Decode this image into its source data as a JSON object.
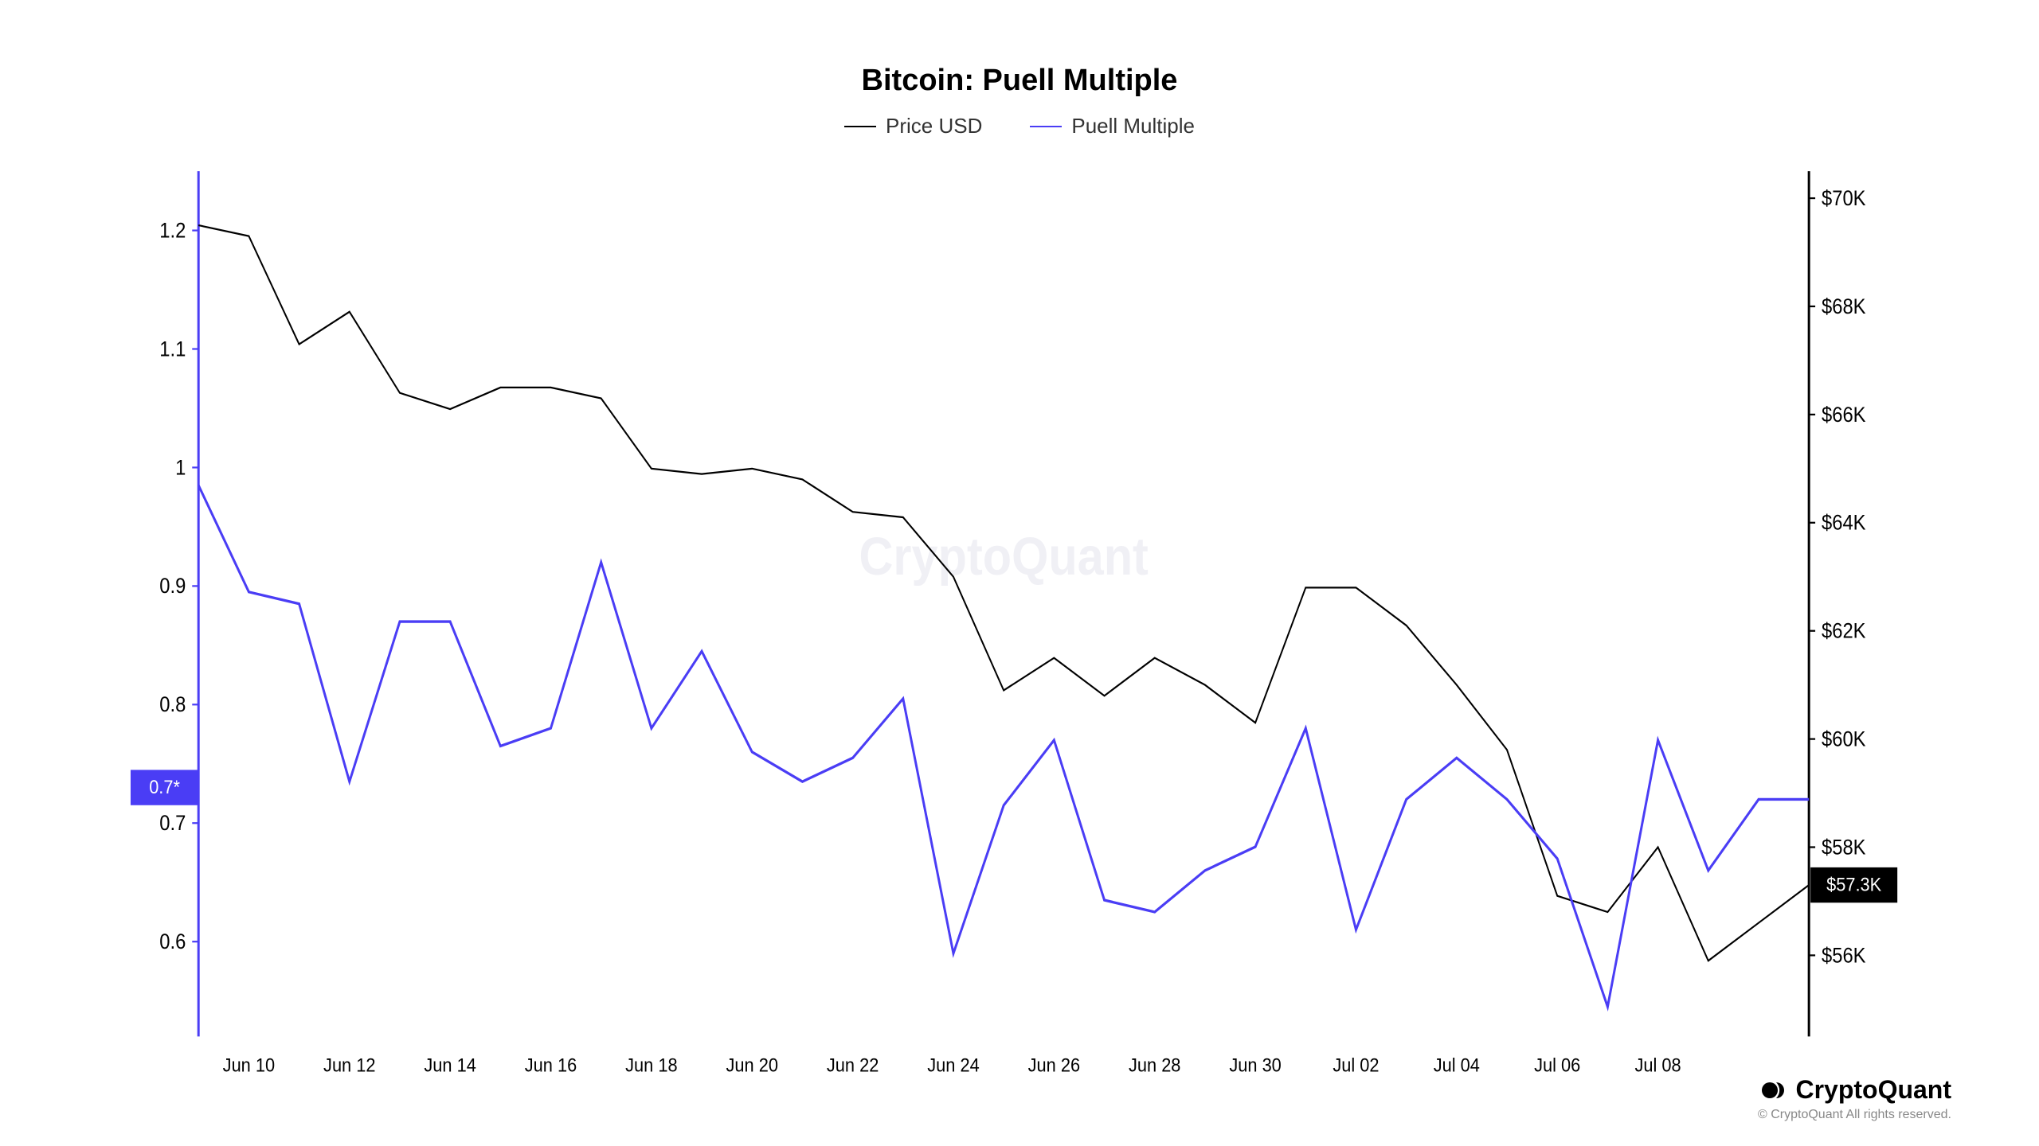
{
  "chart": {
    "type": "line-dual-axis",
    "title": "Bitcoin: Puell Multiple",
    "title_fontsize": 38,
    "background_color": "#ffffff",
    "watermark_text": "CryptoQuant",
    "watermark_color": "#f0f0f5",
    "legend": [
      {
        "label": "Price USD",
        "color": "#000000"
      },
      {
        "label": "Puell Multiple",
        "color": "#4a3df5"
      }
    ],
    "x_axis": {
      "labels": [
        "Jun 10",
        "Jun 12",
        "Jun 14",
        "Jun 16",
        "Jun 18",
        "Jun 20",
        "Jun 22",
        "Jun 24",
        "Jun 26",
        "Jun 28",
        "Jun 30",
        "Jul 02",
        "Jul 04",
        "Jul 06",
        "Jul 08"
      ],
      "label_fontsize": 22
    },
    "left_axis": {
      "color": "#4a3df5",
      "ticks": [
        0.6,
        0.7,
        0.8,
        0.9,
        1,
        1.1,
        1.2
      ],
      "min": 0.52,
      "max": 1.25,
      "marker_value": "0.7*",
      "marker_y": 0.73,
      "label_fontsize": 24
    },
    "right_axis": {
      "color": "#000000",
      "ticks": [
        56,
        58,
        60,
        62,
        64,
        66,
        68,
        70
      ],
      "tick_prefix": "$",
      "tick_suffix": "K",
      "min": 54.5,
      "max": 70.5,
      "marker_value": "$57.3K",
      "marker_y": 57.3,
      "label_fontsize": 24
    },
    "series_price": {
      "name": "Price USD",
      "color": "#000000",
      "line_width": 2,
      "axis": "right",
      "data": [
        69.5,
        69.3,
        67.3,
        67.9,
        66.4,
        66.1,
        66.5,
        66.5,
        66.3,
        65.0,
        64.9,
        65.0,
        64.8,
        64.2,
        64.1,
        63.0,
        60.9,
        61.5,
        60.8,
        61.5,
        61.0,
        60.3,
        62.8,
        62.8,
        62.1,
        61.0,
        59.8,
        57.1,
        56.8,
        58.0,
        55.9,
        56.6,
        57.3
      ]
    },
    "series_puell": {
      "name": "Puell Multiple",
      "color": "#4a3df5",
      "line_width": 3,
      "axis": "left",
      "data": [
        0.985,
        0.895,
        0.885,
        0.735,
        0.87,
        0.87,
        0.765,
        0.78,
        0.92,
        0.78,
        0.845,
        0.76,
        0.735,
        0.755,
        0.805,
        0.59,
        0.715,
        0.77,
        0.635,
        0.625,
        0.66,
        0.68,
        0.78,
        0.61,
        0.72,
        0.755,
        0.72,
        0.67,
        0.545,
        0.77,
        0.66,
        0.72,
        0.72
      ]
    },
    "n_points": 33
  },
  "footer": {
    "brand": "CryptoQuant",
    "copyright": "© CryptoQuant All rights reserved."
  }
}
